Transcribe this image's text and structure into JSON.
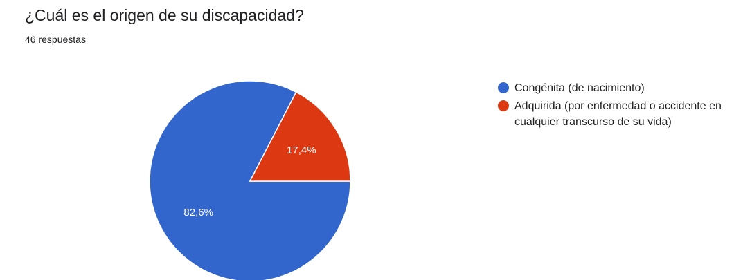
{
  "title": "¿Cuál es el origen de su discapacidad?",
  "subtitle": "46 respuestas",
  "chart_data": {
    "type": "pie",
    "title": "¿Cuál es el origen de su discapacidad?",
    "legend_position": "right",
    "slices": [
      {
        "label": "Congénita (de nacimiento)",
        "value": 82.6,
        "display": "82,6%",
        "color": "#3366cc"
      },
      {
        "label": "Adquirida (por enfermedad o accidente en cualquier transcurso de su vida)",
        "value": 17.4,
        "display": "17,4%",
        "color": "#dc3912"
      }
    ]
  }
}
